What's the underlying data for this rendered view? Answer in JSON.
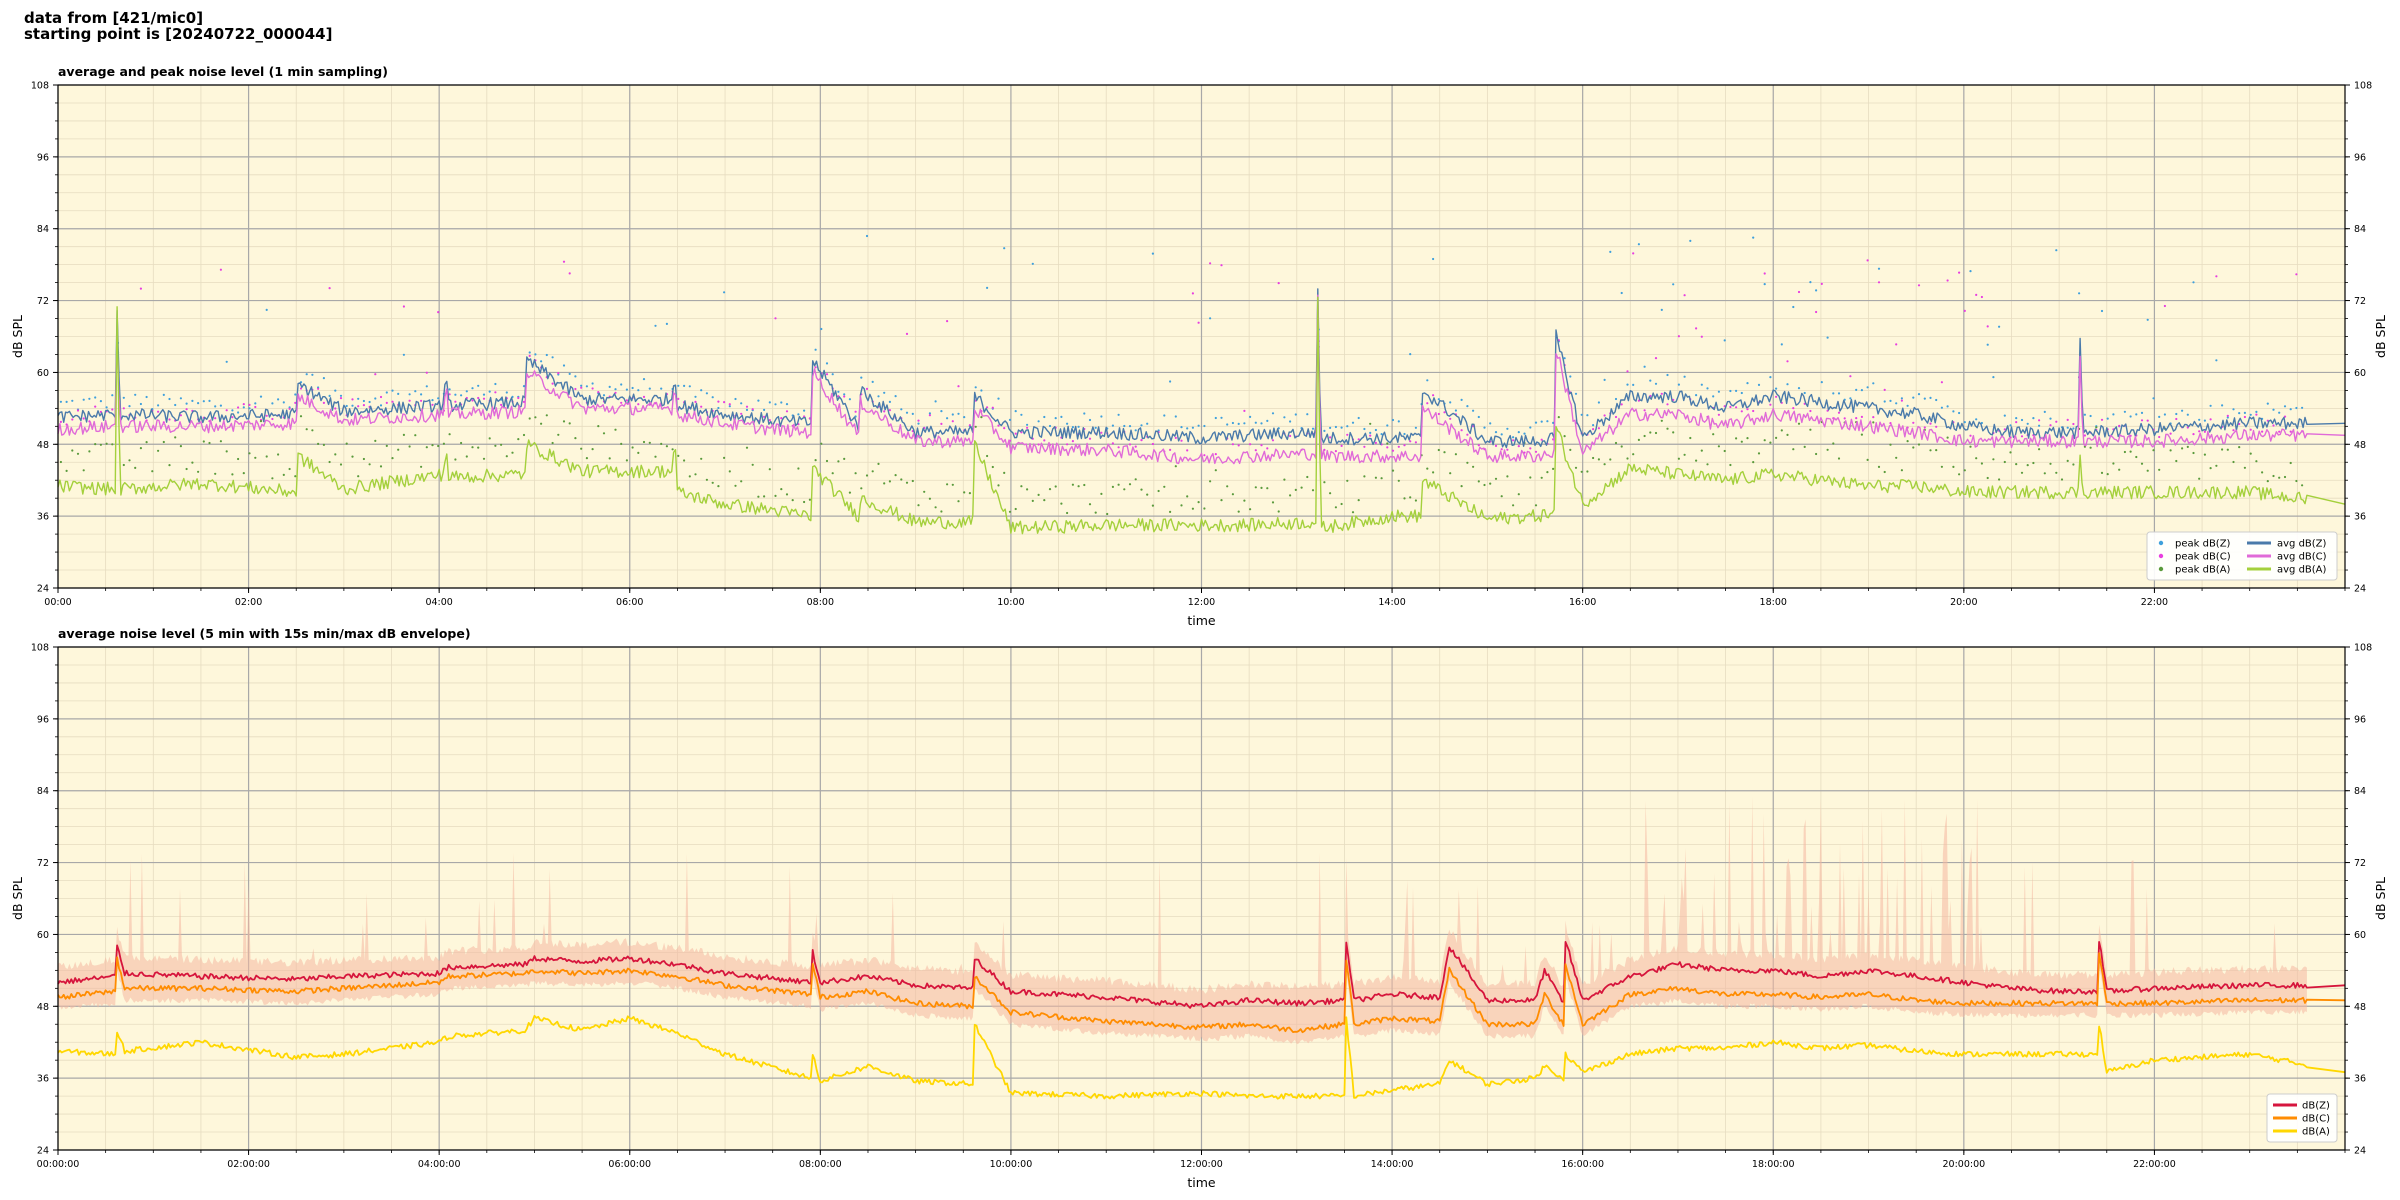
{
  "header": {
    "line1": "data from [421/mic0]",
    "line2": "starting point is [20240722_000044]"
  },
  "colors": {
    "plot_bg": "#fef7db",
    "peak_z": "#3fa0dc",
    "peak_c": "#e83ee0",
    "peak_a": "#5a9a3c",
    "avg_z": "#4a7aaa",
    "avg_c": "#e06ad8",
    "avg_a": "#a4d03c",
    "db_z": "#d6153c",
    "db_c": "#ff8c00",
    "db_a": "#ffd700",
    "envelope": "#f4b8a0"
  },
  "chart_data": [
    {
      "type": "line",
      "title": "average and peak noise level (1 min sampling)",
      "xlabel": "time",
      "ylabel": "dB SPL",
      "ylim": [
        24,
        108
      ],
      "xlim_hours": [
        0,
        24
      ],
      "yticks": [
        "24",
        "36",
        "48",
        "60",
        "72",
        "84",
        "96",
        "108"
      ],
      "xticks": [
        "00:00",
        "02:00",
        "04:00",
        "06:00",
        "08:00",
        "10:00",
        "12:00",
        "14:00",
        "16:00",
        "18:00",
        "20:00",
        "22:00"
      ],
      "grid": true,
      "legend_position": "bottom-right",
      "x_hours": [
        0,
        0.6,
        0.62,
        0.65,
        1.5,
        2.5,
        2.52,
        3,
        4.05,
        4.07,
        4.1,
        4.9,
        4.92,
        5.5,
        6.45,
        6.47,
        6.5,
        7,
        7.5,
        7.9,
        7.92,
        8.4,
        8.42,
        9,
        9.6,
        9.62,
        10,
        11,
        12,
        12.5,
        13.2,
        13.22,
        13.25,
        14,
        14.3,
        14.32,
        15,
        15.5,
        15.7,
        15.72,
        16,
        16.5,
        17,
        17.5,
        18,
        18.5,
        19,
        19.5,
        20,
        20.5,
        21.2,
        21.22,
        21.25,
        22,
        23,
        24
      ],
      "series": [
        {
          "name": "avg dB(Z)",
          "kind": "line",
          "values": [
            52.5,
            53,
            69.5,
            53,
            52.5,
            53,
            58,
            53.5,
            54.5,
            59.5,
            54.5,
            55,
            62,
            55.5,
            55.5,
            61,
            54.5,
            53,
            52,
            51.5,
            62,
            51,
            57,
            50,
            50,
            56,
            50,
            50,
            49,
            49.5,
            50,
            74,
            49,
            49,
            49,
            57,
            48.5,
            48.5,
            49,
            66,
            49,
            56,
            56,
            54,
            56,
            55,
            54,
            53,
            51,
            50,
            50,
            65,
            50,
            50.5,
            51.5,
            51.5
          ]
        },
        {
          "name": "avg dB(C)",
          "kind": "line",
          "values": [
            50.5,
            51,
            67,
            51,
            51,
            51.5,
            56,
            52,
            53,
            58,
            53,
            53.5,
            60,
            54,
            54,
            59,
            53,
            51.5,
            50.5,
            50,
            60,
            49.5,
            55,
            48.5,
            48.5,
            54,
            47.5,
            47,
            45.5,
            46,
            46.5,
            72,
            46,
            46,
            46,
            54,
            46,
            46,
            46.5,
            64,
            46.5,
            53,
            53,
            51,
            53,
            52,
            51,
            50,
            48.5,
            48.5,
            48.5,
            63,
            48.5,
            48.5,
            49.5,
            49.5
          ]
        },
        {
          "name": "avg dB(A)",
          "kind": "line",
          "values": [
            41,
            40.5,
            70,
            40.5,
            41.5,
            40,
            46,
            40.5,
            43,
            48,
            42.5,
            43,
            48,
            43.5,
            43.5,
            50,
            40,
            38,
            37,
            36,
            44,
            36,
            39,
            35,
            35,
            48,
            34,
            34.5,
            34.5,
            34.5,
            35,
            72,
            34,
            36,
            36,
            42,
            35.5,
            36,
            36.5,
            51,
            38,
            44,
            43,
            42,
            43,
            42,
            41,
            41,
            40,
            40,
            40,
            46,
            40,
            40,
            40,
            38
          ]
        }
      ],
      "scatter_series": [
        {
          "name": "peak dB(Z)",
          "kind": "scatter",
          "offset_db": 1.5,
          "spread_db": 1.5,
          "high_scatter_window_hours": [
            16.2,
            20.4
          ],
          "high_scatter_max_db": 83
        },
        {
          "name": "peak dB(C)",
          "kind": "scatter",
          "offset_db": 1.5,
          "spread_db": 1.5,
          "high_scatter_window_hours": [
            16.2,
            20.4
          ],
          "high_scatter_max_db": 80
        },
        {
          "name": "peak dB(A)",
          "kind": "scatter",
          "offset_db": 3.5,
          "spread_db": 3,
          "high_scatter_window_hours": [
            16.2,
            20.4
          ],
          "high_scatter_max_db": 52
        }
      ],
      "legend": [
        [
          "peak dB(Z)",
          "peak dB(C)",
          "peak dB(A)"
        ],
        [
          "avg dB(Z)",
          "avg dB(C)",
          "avg dB(A)"
        ]
      ]
    },
    {
      "type": "line",
      "title": "average noise level (5 min with 15s min/max dB envelope)",
      "xlabel": "time",
      "ylabel": "dB SPL",
      "ylim": [
        24,
        108
      ],
      "xlim_hours": [
        0,
        24
      ],
      "yticks": [
        "24",
        "36",
        "48",
        "60",
        "72",
        "84",
        "96",
        "108"
      ],
      "xticks": [
        "00:00:00",
        "02:00:00",
        "04:00:00",
        "06:00:00",
        "08:00:00",
        "10:00:00",
        "12:00:00",
        "14:00:00",
        "16:00:00",
        "18:00:00",
        "20:00:00",
        "22:00:00"
      ],
      "grid": true,
      "legend_position": "bottom-right",
      "x_hours": [
        0,
        0.6,
        0.62,
        0.7,
        1.5,
        2.5,
        3,
        4,
        4.1,
        4.9,
        5,
        5.5,
        6,
        6.5,
        7,
        7.9,
        7.92,
        8,
        8.5,
        9,
        9.6,
        9.62,
        10,
        11,
        12,
        12.5,
        13,
        13.5,
        13.52,
        13.6,
        14,
        14.5,
        14.6,
        15,
        15.5,
        15.6,
        15.8,
        15.82,
        16,
        16.5,
        17,
        17.5,
        18,
        18.5,
        19,
        19.5,
        20,
        20.5,
        21,
        21.4,
        21.42,
        21.5,
        22,
        23,
        24
      ],
      "series": [
        {
          "name": "dB(Z)",
          "kind": "line",
          "values": [
            52,
            53,
            58,
            53.5,
            53,
            52.5,
            53,
            53.5,
            54.5,
            55,
            56,
            55.5,
            56,
            55,
            53.5,
            52,
            57,
            52,
            53,
            51.5,
            51,
            56,
            50.5,
            49.5,
            48,
            49,
            48.5,
            49,
            59,
            49,
            50,
            49.5,
            58,
            49,
            49,
            54,
            48.5,
            59,
            49,
            53,
            55,
            54,
            54,
            53,
            54,
            53,
            52,
            51,
            50.5,
            50.5,
            59,
            50.5,
            51,
            51.5,
            51.5
          ]
        },
        {
          "name": "dB(C)",
          "kind": "line",
          "values": [
            49.5,
            50.5,
            56,
            51,
            51,
            50.5,
            51,
            52,
            53,
            53.5,
            54,
            53.5,
            54,
            53,
            51.5,
            50,
            55,
            49.5,
            50.5,
            48.5,
            48,
            53,
            47,
            45.5,
            44.5,
            45,
            44,
            45,
            56,
            45,
            46,
            45.5,
            54,
            45,
            45,
            50,
            45,
            55,
            45,
            50,
            51,
            50,
            50,
            49.5,
            50,
            49,
            48.5,
            48.5,
            48.5,
            48.5,
            57,
            48.5,
            48.5,
            49,
            49
          ]
        },
        {
          "name": "dB(A)",
          "kind": "line",
          "values": [
            40.5,
            40,
            44,
            40.5,
            42,
            39.5,
            40,
            42,
            43,
            44,
            46,
            44,
            46,
            43.5,
            40,
            36,
            40,
            35.5,
            38,
            35.5,
            35,
            45,
            33.5,
            33,
            33.5,
            33,
            33,
            33,
            46,
            33,
            34,
            35,
            39,
            35,
            36,
            38,
            36,
            40,
            37,
            40,
            41,
            41,
            42,
            41,
            41.5,
            40.5,
            40,
            40,
            40,
            40,
            45,
            37,
            39,
            40,
            37
          ]
        }
      ],
      "envelope": {
        "name": "15s min/max dB envelope",
        "upper_offset_db": 2,
        "lower_offset_db": 1.5,
        "high_envelope_window_hours": [
          16.4,
          20.3
        ],
        "high_envelope_max_db": 84
      },
      "legend": [
        "dB(Z)",
        "dB(C)",
        "dB(A)"
      ]
    }
  ]
}
